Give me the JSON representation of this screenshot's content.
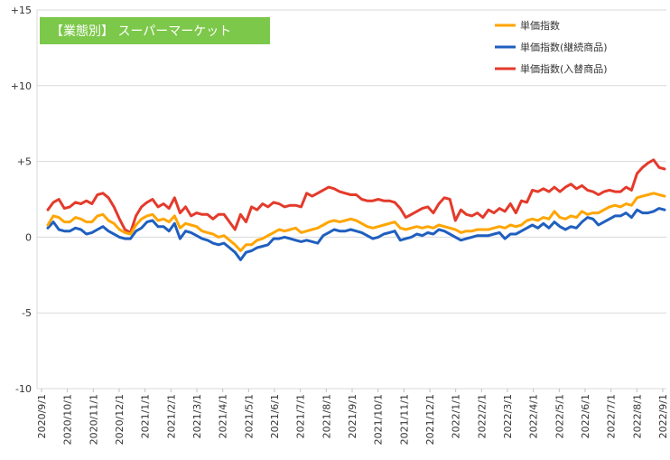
{
  "chart_data": {
    "type": "line",
    "title": "【業態別】 スーパーマーケット",
    "title_bg": "#7cc84a",
    "xlabel": "",
    "ylabel": "",
    "ylim": [
      -10,
      15
    ],
    "yticks": [
      15,
      10,
      5,
      0,
      -5,
      -10
    ],
    "ytick_labels": [
      "+15",
      "+10",
      "+5",
      "0",
      "-5",
      "-10"
    ],
    "xtick_labels": [
      "2020/9/1",
      "2020/10/1",
      "2020/11/1",
      "2020/12/1",
      "2021/1/1",
      "2021/2/1",
      "2021/3/1",
      "2021/4/1",
      "2021/5/1",
      "2021/6/1",
      "2021/7/1",
      "2021/8/1",
      "2021/9/1",
      "2021/10/1",
      "2021/11/1",
      "2021/12/1",
      "2022/1/1",
      "2022/2/1",
      "2022/3/1",
      "2022/4/1",
      "2022/5/1",
      "2022/6/1",
      "2022/7/1",
      "2022/8/1",
      "2022/9/1"
    ],
    "grid": "horizontal",
    "legend_position": "top-right",
    "series": [
      {
        "name": "単価指数",
        "color": "#ffa500",
        "values": [
          0.8,
          1.4,
          1.3,
          1.0,
          1.0,
          1.3,
          1.2,
          1.0,
          1.0,
          1.4,
          1.5,
          1.1,
          0.9,
          0.5,
          0.3,
          0.2,
          0.8,
          1.2,
          1.4,
          1.5,
          1.1,
          1.2,
          1.0,
          1.4,
          0.6,
          0.9,
          0.8,
          0.7,
          0.4,
          0.3,
          0.2,
          0.0,
          0.1,
          -0.2,
          -0.5,
          -0.9,
          -0.5,
          -0.5,
          -0.2,
          -0.1,
          0.1,
          0.3,
          0.5,
          0.4,
          0.5,
          0.6,
          0.3,
          0.4,
          0.5,
          0.6,
          0.8,
          1.0,
          1.1,
          1.0,
          1.1,
          1.2,
          1.1,
          0.9,
          0.7,
          0.6,
          0.7,
          0.8,
          0.9,
          1.0,
          0.6,
          0.5,
          0.6,
          0.7,
          0.6,
          0.7,
          0.6,
          0.8,
          0.7,
          0.6,
          0.5,
          0.3,
          0.4,
          0.4,
          0.5,
          0.5,
          0.5,
          0.6,
          0.7,
          0.6,
          0.8,
          0.7,
          0.8,
          1.1,
          1.2,
          1.1,
          1.3,
          1.2,
          1.7,
          1.3,
          1.2,
          1.4,
          1.3,
          1.7,
          1.5,
          1.6,
          1.6,
          1.8,
          2.0,
          2.1,
          2.0,
          2.2,
          2.1,
          2.6,
          2.7,
          2.8,
          2.9,
          2.8,
          2.7
        ]
      },
      {
        "name": "単価指数(継続商品)",
        "color": "#1f5fbf",
        "values": [
          0.6,
          1.0,
          0.5,
          0.4,
          0.4,
          0.6,
          0.5,
          0.2,
          0.3,
          0.5,
          0.7,
          0.4,
          0.2,
          0.0,
          -0.1,
          -0.1,
          0.4,
          0.6,
          1.0,
          1.1,
          0.7,
          0.7,
          0.4,
          0.9,
          -0.1,
          0.4,
          0.3,
          0.1,
          -0.1,
          -0.2,
          -0.4,
          -0.5,
          -0.4,
          -0.7,
          -1.0,
          -1.5,
          -1.0,
          -0.9,
          -0.7,
          -0.6,
          -0.5,
          -0.1,
          -0.1,
          0.0,
          -0.1,
          -0.2,
          -0.3,
          -0.2,
          -0.3,
          -0.4,
          0.1,
          0.3,
          0.5,
          0.4,
          0.4,
          0.5,
          0.4,
          0.3,
          0.1,
          -0.1,
          0.0,
          0.2,
          0.3,
          0.4,
          -0.2,
          -0.1,
          0.0,
          0.2,
          0.1,
          0.3,
          0.2,
          0.5,
          0.4,
          0.2,
          0.0,
          -0.2,
          -0.1,
          0.0,
          0.1,
          0.1,
          0.1,
          0.2,
          0.3,
          -0.1,
          0.2,
          0.2,
          0.4,
          0.6,
          0.8,
          0.6,
          0.9,
          0.6,
          1.0,
          0.7,
          0.5,
          0.7,
          0.6,
          1.0,
          1.3,
          1.2,
          0.8,
          1.0,
          1.2,
          1.4,
          1.4,
          1.6,
          1.3,
          1.8,
          1.6,
          1.6,
          1.7,
          1.9,
          1.8
        ]
      },
      {
        "name": "単価指数(入替商品)",
        "color": "#e43a2b",
        "values": [
          1.8,
          2.3,
          2.5,
          1.9,
          2.0,
          2.3,
          2.2,
          2.4,
          2.2,
          2.8,
          2.9,
          2.6,
          2.0,
          1.2,
          0.5,
          0.3,
          1.4,
          2.0,
          2.3,
          2.5,
          2.0,
          2.2,
          1.9,
          2.6,
          1.6,
          2.0,
          1.4,
          1.6,
          1.5,
          1.5,
          1.2,
          1.5,
          1.5,
          1.0,
          0.5,
          1.5,
          1.0,
          2.0,
          1.8,
          2.2,
          2.0,
          2.3,
          2.2,
          2.0,
          2.1,
          2.1,
          2.0,
          2.9,
          2.7,
          2.9,
          3.1,
          3.3,
          3.2,
          3.0,
          2.9,
          2.8,
          2.8,
          2.5,
          2.4,
          2.4,
          2.5,
          2.4,
          2.4,
          2.3,
          1.9,
          1.3,
          1.5,
          1.7,
          1.9,
          2.0,
          1.6,
          2.2,
          2.6,
          2.5,
          1.1,
          1.8,
          1.5,
          1.4,
          1.6,
          1.3,
          1.8,
          1.6,
          1.9,
          1.7,
          2.2,
          1.6,
          2.4,
          2.3,
          3.1,
          3.0,
          3.2,
          3.0,
          3.3,
          3.0,
          3.3,
          3.5,
          3.2,
          3.4,
          3.1,
          3.0,
          2.8,
          3.0,
          3.1,
          3.0,
          3.0,
          3.3,
          3.1,
          4.2,
          4.6,
          4.9,
          5.1,
          4.6,
          4.5
        ]
      }
    ]
  }
}
